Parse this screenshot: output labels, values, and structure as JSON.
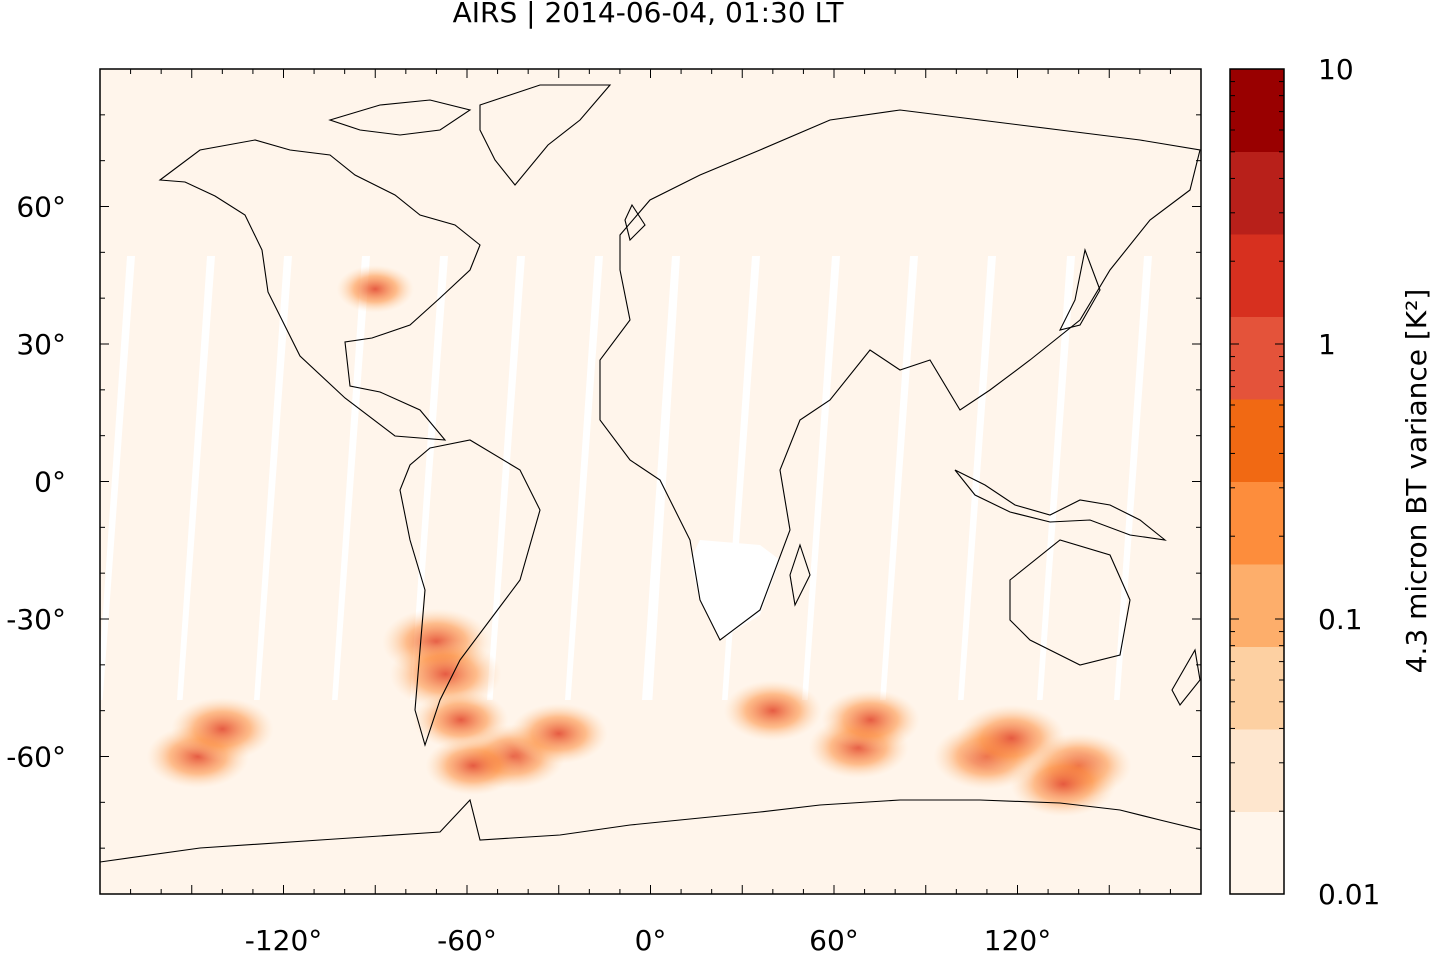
{
  "title": "AIRS | 2014-06-04, 01:30 LT",
  "map": {
    "lon_range": [
      -180,
      180
    ],
    "lat_range": [
      -90,
      90
    ],
    "lon_ticks": [
      {
        "value": -120,
        "label": "-120°"
      },
      {
        "value": -60,
        "label": "-60°"
      },
      {
        "value": 0,
        "label": "0°"
      },
      {
        "value": 60,
        "label": "60°"
      },
      {
        "value": 120,
        "label": "120°"
      }
    ],
    "lat_ticks": [
      {
        "value": 60,
        "label": "60°"
      },
      {
        "value": 30,
        "label": "30°"
      },
      {
        "value": 0,
        "label": "0°"
      },
      {
        "value": -30,
        "label": "-30°"
      },
      {
        "value": -60,
        "label": "-60°"
      }
    ],
    "background_color": "#fff5eb",
    "gap_color": "#ffffff",
    "coastline_color": "#000000"
  },
  "colorbar": {
    "label": "4.3 micron BT variance [K²]",
    "scale": "log",
    "range": [
      0.01,
      10
    ],
    "tick_labels": [
      {
        "value": 10,
        "label": "10"
      },
      {
        "value": 1,
        "label": "1"
      },
      {
        "value": 0.1,
        "label": "0.1"
      },
      {
        "value": 0.01,
        "label": "0.01"
      }
    ],
    "colors": [
      "#fff5eb",
      "#fee6ce",
      "#fdd0a2",
      "#fdae6b",
      "#fd8d3c",
      "#f16913",
      "#e4533a",
      "#d7301f",
      "#b8201a",
      "#990000"
    ]
  },
  "chart_data": {
    "type": "heatmap",
    "title": "AIRS | 2014-06-04, 01:30 LT",
    "colorbar_label": "4.3 micron BT variance [K²]",
    "color_scale": "log",
    "zlim": [
      0.01,
      10
    ],
    "xlim": [
      -180,
      180
    ],
    "ylim": [
      -90,
      90
    ],
    "hotspots": [
      {
        "lon": -70,
        "lat": -35,
        "variance": 1.2
      },
      {
        "lon": -67,
        "lat": -42,
        "variance": 1.5
      },
      {
        "lon": -148,
        "lat": -60,
        "variance": 0.8
      },
      {
        "lon": -140,
        "lat": -54,
        "variance": 0.8
      },
      {
        "lon": -45,
        "lat": -60,
        "variance": 0.9
      },
      {
        "lon": -30,
        "lat": -55,
        "variance": 0.6
      },
      {
        "lon": 40,
        "lat": -50,
        "variance": 0.6
      },
      {
        "lon": 68,
        "lat": -58,
        "variance": 0.7
      },
      {
        "lon": 72,
        "lat": -52,
        "variance": 0.6
      },
      {
        "lon": 110,
        "lat": -60,
        "variance": 1.1
      },
      {
        "lon": 118,
        "lat": -56,
        "variance": 1.2
      },
      {
        "lon": 140,
        "lat": -62,
        "variance": 1.0
      },
      {
        "lon": 135,
        "lat": -66,
        "variance": 1.0
      },
      {
        "lon": -62,
        "lat": -52,
        "variance": 0.5
      },
      {
        "lon": -58,
        "lat": -62,
        "variance": 0.5
      },
      {
        "lon": -90,
        "lat": 42,
        "variance": 0.15
      }
    ]
  }
}
